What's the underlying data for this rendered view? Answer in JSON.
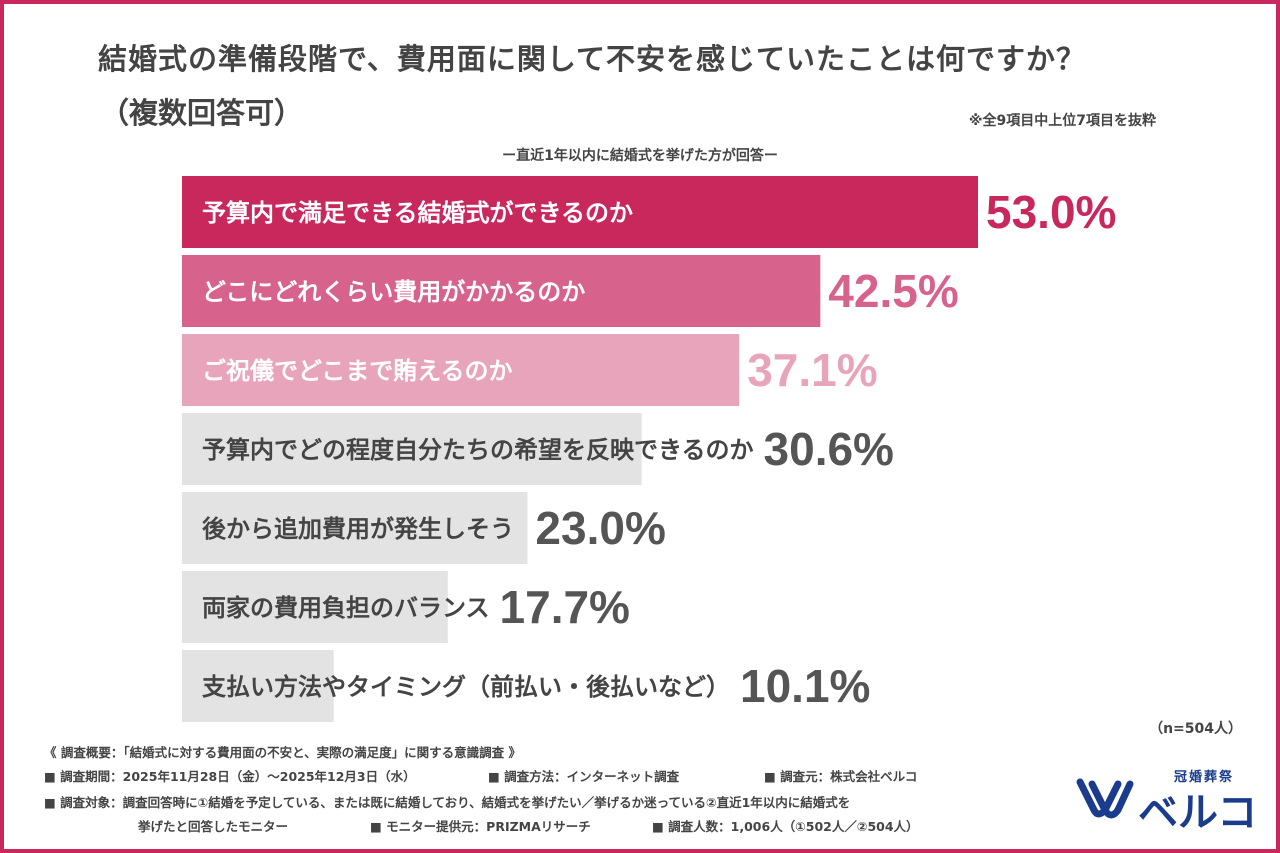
{
  "header": {
    "title": "結婚式の準備段階で、費用面に関して不安を感じていたことは何ですか？",
    "subtitle": "（複数回答可）",
    "note": "※全9項目中上位7項目を抜粋",
    "target": "ー直近1年以内に結婚式を挙げた方が回答ー"
  },
  "chart_data": {
    "type": "bar",
    "orientation": "horizontal",
    "categories": [
      "予算内で満足できる結婚式ができるのか",
      "どこにどれくらい費用がかかるのか",
      "ご祝儀でどこまで賄えるのか",
      "予算内でどの程度自分たちの希望を反映できるのか",
      "後から追加費用が発生しそう",
      "両家の費用負担のバランス",
      "支払い方法やタイミング（前払い・後払いなど）"
    ],
    "values": [
      53.0,
      42.5,
      37.1,
      30.6,
      23.0,
      17.7,
      10.1
    ],
    "value_labels": [
      "53.0%",
      "42.5%",
      "37.1%",
      "30.6%",
      "23.0%",
      "17.7%",
      "10.1%"
    ],
    "unit": "%",
    "colors": [
      "#c9285d",
      "#d7628b",
      "#e8a4bb",
      "#e3e3e3",
      "#e3e3e3",
      "#e3e3e3",
      "#e3e3e3"
    ],
    "label_colors": [
      "#ffffff",
      "#ffffff",
      "#ffffff",
      "#444444",
      "#444444",
      "#444444",
      "#444444"
    ],
    "value_colors": [
      "#c9285d",
      "#d7628b",
      "#e8a4bb",
      "#555555",
      "#555555",
      "#555555",
      "#555555"
    ],
    "xlim": [
      0,
      60
    ],
    "grid": false,
    "legend": "none"
  },
  "footer": {
    "n": "（n=504人）",
    "survey_title": "《 調査概要：「結婚式に対する費用面の不安と、実際の満足度」に関する意識調査 》",
    "period": "■ 調査期間：2025年11月28日（金）～2025年12月3日（水）",
    "method": "■ 調査方法：インターネット調査",
    "source": "■ 調査元：株式会社ベルコ",
    "subjects_1": "■ 調査対象：調査回答時に①結婚を予定している、または既に結婚しており、結婚式を挙げたい／挙げるか迷っている②直近1年以内に結婚式を",
    "subjects_2": "挙げたと回答したモニター",
    "provider": "■ モニター提供元：PRIZMAリサーチ",
    "count": "■ 調査人数：1,006人（①502人／②504人）"
  },
  "logo": {
    "sub": "冠婚葬祭",
    "main": "ベルコ",
    "color": "#1b3c8c"
  }
}
